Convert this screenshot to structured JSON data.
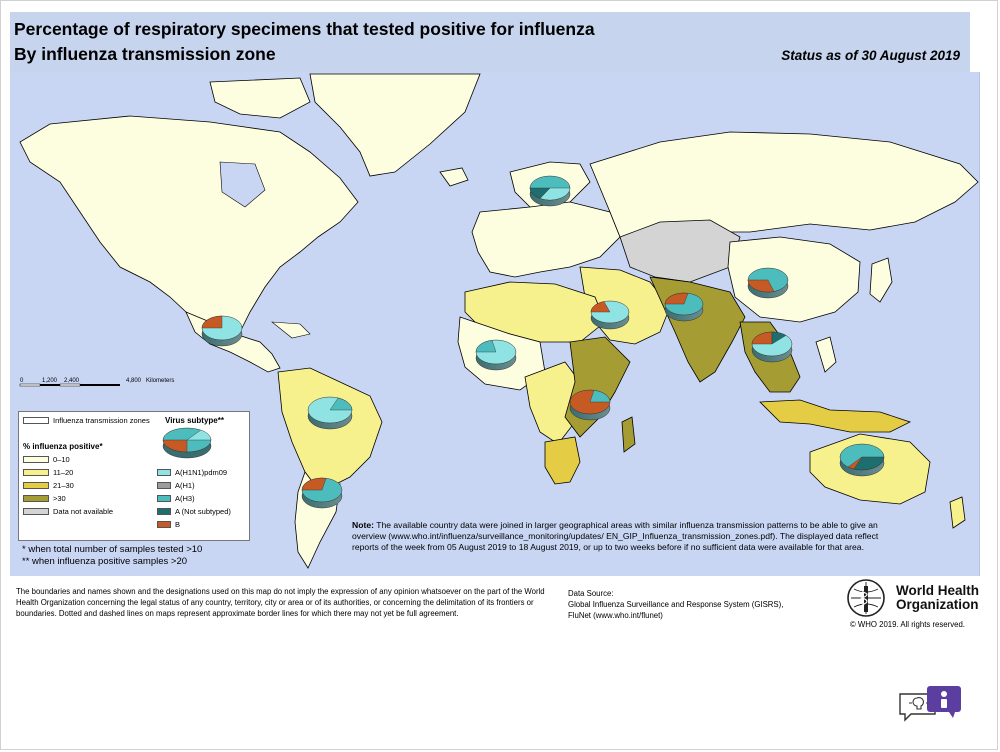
{
  "header": {
    "title_line1": "Percentage of respiratory specimens that tested positive for influenza",
    "title_line2": "By influenza transmission zone",
    "status": "Status as of 30 August 2019"
  },
  "scale_bar": {
    "ticks": [
      "0",
      "1,200",
      "2,400",
      "4,800"
    ],
    "unit": "Kilometers"
  },
  "legend": {
    "zones_label": "Influenza transmission zones",
    "virus_subtype_title": "Virus subtype**",
    "percent_title": "% influenza positive*",
    "percent_classes": [
      {
        "label": "0–10",
        "color": "#fdfde0"
      },
      {
        "label": "11–20",
        "color": "#f6f08d"
      },
      {
        "label": "21–30",
        "color": "#e4cd45"
      },
      {
        "label": ">30",
        "color": "#a59c34"
      },
      {
        "label": "Data not available",
        "color": "#d4d4d4"
      }
    ],
    "subtypes": [
      {
        "label": "A(H1N1)pdm09",
        "color": "#8fe3e3"
      },
      {
        "label": "A(H1)",
        "color": "#9c9c9c"
      },
      {
        "label": "A(H3)",
        "color": "#4cbcbc"
      },
      {
        "label": "A (Not subtyped)",
        "color": "#1e6e70"
      },
      {
        "label": "B",
        "color": "#c55a24"
      }
    ]
  },
  "footnotes": {
    "one": "*   when total number of samples tested >10",
    "two": "**  when influenza positive samples >20"
  },
  "note": {
    "label": "Note:",
    "text": "The available country data were joined in larger geographical areas with similar influenza transmission patterns to be able to give an overview (www.who.int/influenza/surveillance_monitoring/updates/ EN_GIP_Influenza_transmission_zones.pdf). The displayed data reflect reports of the week from 05 August 2019 to 18 August 2019, or up to two weeks before if no sufficient data were available for that area."
  },
  "disclaimer": "The boundaries and names shown and the designations used on this map do not imply the expression of any opinion whatsoever on the part of the World Health Organization concerning the legal status of any country, territory, city or area or of its authorities, or concerning the delimitation of its frontiers or boundaries. Dotted and dashed lines on maps represent approximate border lines for which there may not yet be full agreement.",
  "source": {
    "label": "Data Source:",
    "line1": "Global Influenza Surveillance and Response System (GISRS),",
    "line2": "FluNet (www.who.int/flunet)"
  },
  "who": {
    "name_line1": "World Health",
    "name_line2": "Organization",
    "copyright": "© WHO 2019. All rights reserved."
  },
  "colors": {
    "ocean": "#c9d6f3",
    "header_bg": "#c6d4ee",
    "land_outline": "#000000"
  },
  "icons": [
    "who-emblem-icon",
    "chat-widget-icon",
    "bulb-icon",
    "user-icon"
  ]
}
